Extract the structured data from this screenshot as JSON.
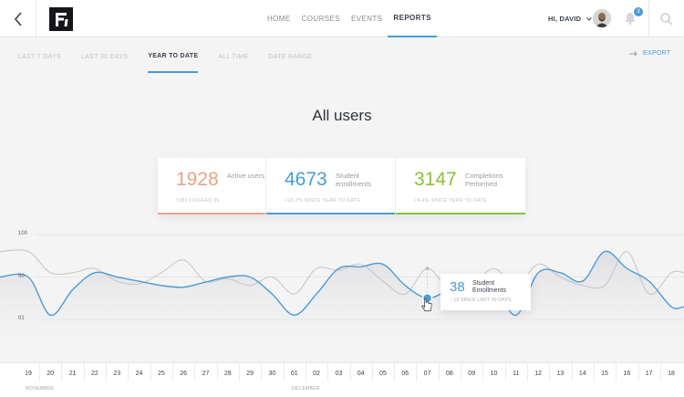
{
  "nav": {
    "items": [
      {
        "label": "HOME",
        "active": false
      },
      {
        "label": "COURSES",
        "active": false
      },
      {
        "label": "EVENTS",
        "active": false
      },
      {
        "label": "REPORTS",
        "active": true
      }
    ]
  },
  "user": {
    "greeting": "HI, DAVID",
    "notifications": "3"
  },
  "filters": {
    "items": [
      {
        "label": "LAST 7 DAYS",
        "active": false
      },
      {
        "label": "LAST 30 DAYS",
        "active": false
      },
      {
        "label": "YEAR TO DATE",
        "active": true
      },
      {
        "label": "ALL TIME",
        "active": false
      },
      {
        "label": "DATE RANGE",
        "active": false
      }
    ],
    "export_label": "EXPORT"
  },
  "page_title": "All users",
  "stats": [
    {
      "value": "1928",
      "label": "Active users",
      "sub": "1981 LOGGED IN",
      "color": "#e8a489"
    },
    {
      "value": "4673",
      "label": "Student enrollments",
      "sub": "+16.2% SINCE YEAR TO DATE",
      "color": "#4a9bd8"
    },
    {
      "value": "3147",
      "label": "Completions Performed",
      "sub": "+9.4% SINCE YEAR TO DATE",
      "color": "#8bbf3f"
    }
  ],
  "chart_data": {
    "type": "line",
    "ylim": [
      0,
      100
    ],
    "yticks": [
      "100",
      "50",
      "01"
    ],
    "x": [
      "19",
      "20",
      "21",
      "22",
      "23",
      "24",
      "25",
      "26",
      "27",
      "28",
      "29",
      "30",
      "01",
      "02",
      "03",
      "04",
      "05",
      "06",
      "07",
      "08",
      "09",
      "10",
      "11",
      "12",
      "13",
      "14",
      "15",
      "16",
      "17",
      "18"
    ],
    "months": [
      "NOVEMBER",
      "DECEMBER"
    ],
    "series": [
      {
        "color": "#4a9bd8",
        "values": [
          50,
          5,
          35,
          55,
          50,
          45,
          40,
          38,
          44,
          50,
          50,
          30,
          5,
          30,
          60,
          62,
          65,
          40,
          25,
          35,
          42,
          40,
          5,
          55,
          55,
          45,
          80,
          60,
          45,
          15
        ]
      },
      {
        "color": "#c4c4c8",
        "values": [
          80,
          55,
          55,
          60,
          45,
          42,
          55,
          70,
          45,
          48,
          40,
          50,
          30,
          60,
          58,
          65,
          45,
          30,
          60,
          35,
          40,
          60,
          40,
          65,
          50,
          40,
          40,
          80,
          30,
          55
        ]
      }
    ],
    "tooltip": {
      "value": "38",
      "label": "Student Enrollments",
      "sub": "↑ 16 SINCE LAST 30 DAYS"
    }
  }
}
